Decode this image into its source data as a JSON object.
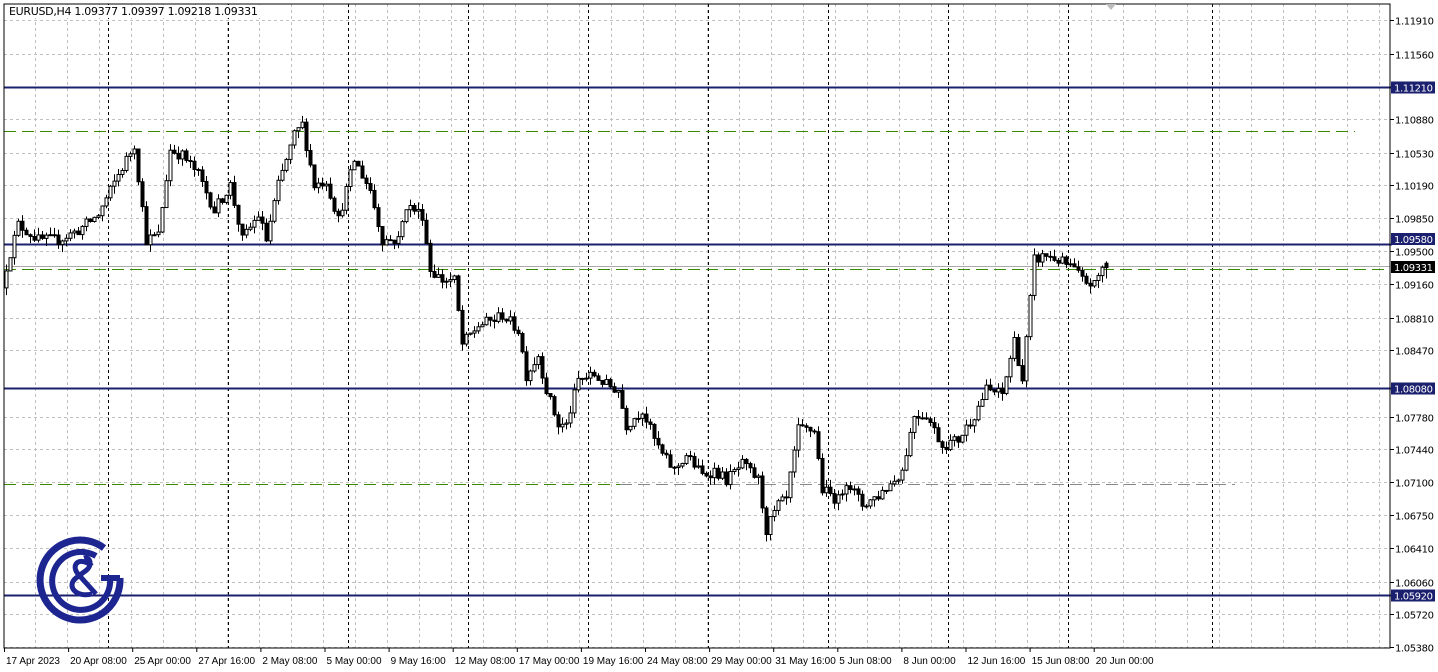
{
  "header": {
    "symbol_info": "EURUSD,H4  1.09377 1.09397 1.09218 1.09331"
  },
  "colors": {
    "bull": "#ffffff",
    "bear": "#000000",
    "level_line": "#1a1f6e",
    "fib_line": "#3a8a00",
    "grid": "#c0c0c0",
    "logo": "#1c2590"
  },
  "logo": {
    "icon": "gc-ampersand-logo",
    "text": "G&C"
  },
  "chart_data": {
    "type": "candlestick",
    "symbol": "EURUSD",
    "timeframe": "H4",
    "ohlc_last": {
      "open": 1.09377,
      "high": 1.09397,
      "low": 1.09218,
      "close": 1.09331
    },
    "ylim": [
      1.0537,
      1.1208
    ],
    "price_ticks": [
      "1.11910",
      "1.11560",
      "1.10880",
      "1.10530",
      "1.10190",
      "1.09850",
      "1.09500",
      "1.09160",
      "1.08810",
      "1.08470",
      "1.07780",
      "1.07440",
      "1.07100",
      "1.06750",
      "1.06410",
      "1.06060",
      "1.05720",
      "1.05380"
    ],
    "time_labels": [
      "17 Apr 2023",
      "20 Apr 08:00",
      "25 Apr 00:00",
      "27 Apr 16:00",
      "2 May 08:00",
      "5 May 00:00",
      "9 May 16:00",
      "12 May 08:00",
      "17 May 00:00",
      "19 May 16:00",
      "24 May 08:00",
      "29 May 00:00",
      "31 May 16:00",
      "5 Jun 08:00",
      "8 Jun 00:00",
      "12 Jun 16:00",
      "15 Jun 08:00",
      "20 Jun 00:00"
    ],
    "levels": [
      {
        "price": 1.1121,
        "label": "1.11210"
      },
      {
        "price": 1.0958,
        "label": "1.09580"
      },
      {
        "price": 1.0808,
        "label": "1.08080"
      },
      {
        "price": 1.0592,
        "label": "1.05920"
      }
    ],
    "current_price": {
      "price": 1.09331,
      "label": "1.09331"
    },
    "dashed_levels": [
      1.1075,
      1.0932,
      1.0708
    ],
    "close_path": [
      [
        0,
        1.092
      ],
      [
        4,
        1.0978
      ],
      [
        9,
        1.0962
      ],
      [
        14,
        1.0962
      ],
      [
        19,
        1.0972
      ],
      [
        24,
        1.0988
      ],
      [
        29,
        1.103
      ],
      [
        33,
        1.1061
      ],
      [
        36,
        1.0962
      ],
      [
        39,
        1.0967
      ],
      [
        42,
        1.1056
      ],
      [
        45,
        1.105
      ],
      [
        49,
        1.103
      ],
      [
        53,
        1.0993
      ],
      [
        57,
        1.1019
      ],
      [
        60,
        1.0962
      ],
      [
        64,
        1.0988
      ],
      [
        66,
        1.0962
      ],
      [
        69,
        1.1019
      ],
      [
        73,
        1.1071
      ],
      [
        75,
        1.1082
      ],
      [
        78,
        1.1019
      ],
      [
        81,
        1.1024
      ],
      [
        84,
        1.0983
      ],
      [
        88,
        1.1045
      ],
      [
        92,
        1.1014
      ],
      [
        95,
        1.0962
      ],
      [
        99,
        1.0962
      ],
      [
        101,
        1.0998
      ],
      [
        105,
        1.0988
      ],
      [
        107,
        1.0931
      ],
      [
        110,
        1.092
      ],
      [
        113,
        1.092
      ],
      [
        115,
        1.0853
      ],
      [
        119,
        1.0873
      ],
      [
        123,
        1.0879
      ],
      [
        125,
        1.0884
      ],
      [
        129,
        1.0868
      ],
      [
        131,
        1.0821
      ],
      [
        134,
        1.0842
      ],
      [
        136,
        1.0806
      ],
      [
        139,
        1.0769
      ],
      [
        141,
        1.0769
      ],
      [
        144,
        1.0816
      ],
      [
        148,
        1.0821
      ],
      [
        151,
        1.0811
      ],
      [
        154,
        1.0806
      ],
      [
        156,
        1.0769
      ],
      [
        160,
        1.0785
      ],
      [
        163,
        1.0754
      ],
      [
        165,
        1.0738
      ],
      [
        168,
        1.0722
      ],
      [
        171,
        1.0738
      ],
      [
        175,
        1.0717
      ],
      [
        178,
        1.0722
      ],
      [
        181,
        1.0712
      ],
      [
        185,
        1.0728
      ],
      [
        189,
        1.0712
      ],
      [
        191,
        1.066
      ],
      [
        194,
        1.0686
      ],
      [
        196,
        1.0691
      ],
      [
        199,
        1.0764
      ],
      [
        203,
        1.0764
      ],
      [
        205,
        1.0702
      ],
      [
        209,
        1.0691
      ],
      [
        211,
        1.0712
      ],
      [
        215,
        1.0686
      ],
      [
        219,
        1.0696
      ],
      [
        223,
        1.0712
      ],
      [
        225,
        1.0722
      ],
      [
        228,
        1.078
      ],
      [
        231,
        1.078
      ],
      [
        235,
        1.0748
      ],
      [
        239,
        1.0754
      ],
      [
        243,
        1.078
      ],
      [
        246,
        1.0806
      ],
      [
        250,
        1.0801
      ],
      [
        253,
        1.0858
      ],
      [
        255,
        1.0816
      ],
      [
        258,
        1.0941
      ],
      [
        261,
        1.0946
      ],
      [
        264,
        1.0941
      ],
      [
        268,
        1.0931
      ],
      [
        270,
        1.092
      ],
      [
        273,
        1.0915
      ],
      [
        275,
        1.0933
      ]
    ]
  }
}
